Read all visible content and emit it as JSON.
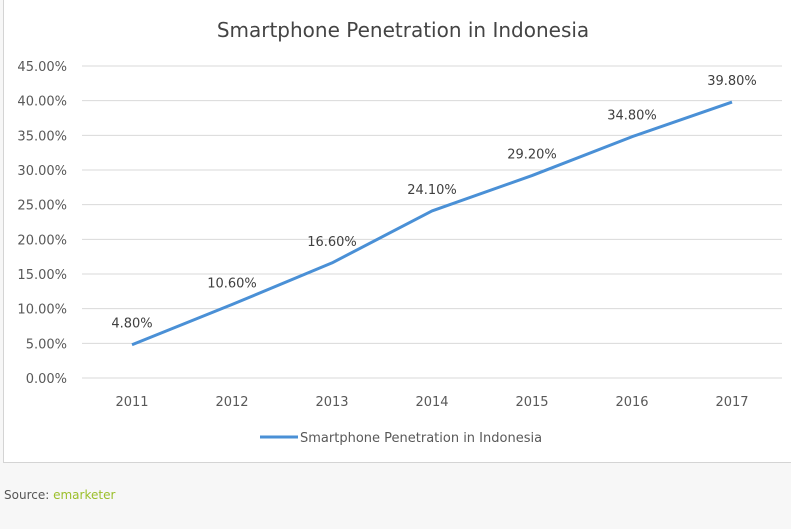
{
  "chart_data": {
    "type": "line",
    "title": "Smartphone Penetration in Indonesia",
    "categories": [
      "2011",
      "2012",
      "2013",
      "2014",
      "2015",
      "2016",
      "2017"
    ],
    "series": [
      {
        "name": "Smartphone Penetration in Indonesia",
        "values": [
          4.8,
          10.6,
          16.6,
          24.1,
          29.2,
          34.8,
          39.8
        ],
        "labels": [
          "4.80%",
          "10.60%",
          "16.60%",
          "24.10%",
          "29.20%",
          "34.80%",
          "39.80%"
        ],
        "color": "#4a90d6"
      }
    ],
    "ylim": [
      0,
      45
    ],
    "yticks": [
      "0.00%",
      "5.00%",
      "10.00%",
      "15.00%",
      "20.00%",
      "25.00%",
      "30.00%",
      "35.00%",
      "40.00%",
      "45.00%"
    ],
    "grid": true,
    "legend": "bottom"
  },
  "source": {
    "label": "Source:",
    "link": "emarketer"
  }
}
